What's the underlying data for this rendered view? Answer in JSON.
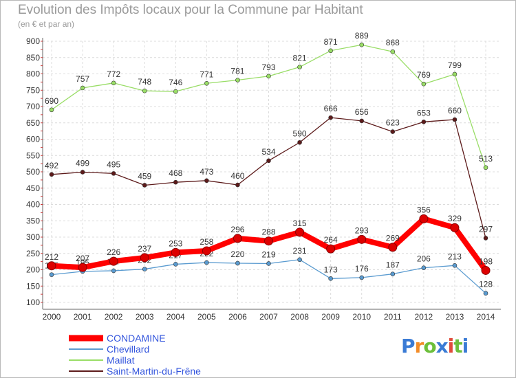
{
  "title": "Evolution des Impôts locaux pour la Commune par Habitant",
  "subtitle": "(en € et par an)",
  "logo": {
    "p": "P",
    "r": "r",
    "o": "o",
    "x": "x",
    "i": "i",
    "t": "t",
    "i2": "i"
  },
  "chart_data": {
    "type": "line",
    "x": [
      "2000",
      "2001",
      "2002",
      "2003",
      "2004",
      "2005",
      "2006",
      "2007",
      "2008",
      "2009",
      "2010",
      "2011",
      "2012",
      "2013",
      "2014"
    ],
    "ylim": [
      100,
      900
    ],
    "yticks": [
      100,
      150,
      200,
      250,
      300,
      350,
      400,
      450,
      500,
      550,
      600,
      650,
      700,
      750,
      800,
      850,
      900
    ],
    "grid": true,
    "legend_position": "bottom-left",
    "series": [
      {
        "name": "Saint-Martin-du-Frêne",
        "color": "#5c1a1a",
        "values": [
          492,
          499,
          495,
          459,
          468,
          473,
          460,
          534,
          590,
          666,
          656,
          623,
          653,
          660,
          297
        ]
      },
      {
        "name": "Maillat",
        "color": "#99dd66",
        "values": [
          690,
          757,
          772,
          748,
          746,
          771,
          781,
          793,
          821,
          871,
          889,
          868,
          769,
          799,
          513
        ]
      },
      {
        "name": "Chevillard",
        "color": "#5a9bd0",
        "values": [
          185,
          195,
          197,
          202,
          217,
          222,
          220,
          219,
          231,
          173,
          176,
          187,
          206,
          213,
          128
        ]
      },
      {
        "name": "CONDAMINE",
        "color": "#ff0000",
        "values": [
          212,
          207,
          226,
          237,
          253,
          258,
          296,
          288,
          315,
          264,
          293,
          269,
          356,
          329,
          198
        ]
      }
    ],
    "legend_order": [
      "CONDAMINE",
      "Chevillard",
      "Maillat",
      "Saint-Martin-du-Frêne"
    ]
  }
}
